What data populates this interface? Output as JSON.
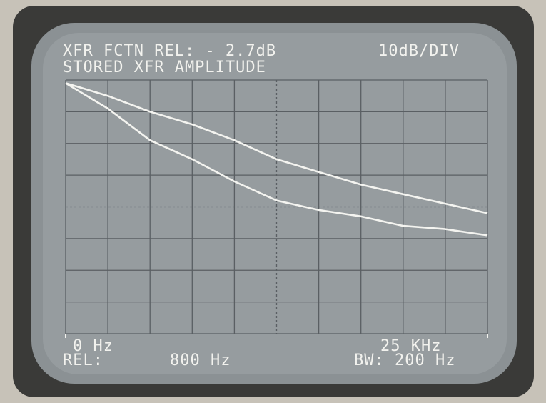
{
  "chart_data": {
    "type": "line",
    "title": "XFR FCTN REL: - 2.7dB",
    "subtitle": "STORED XFR AMPLITUDE",
    "annotations": [
      "10dB/DIV",
      "REL:",
      "800 Hz",
      "BW: 200 Hz"
    ],
    "x": [
      0,
      2500,
      5000,
      7500,
      10000,
      12500,
      15000,
      17500,
      20000,
      22500,
      25000
    ],
    "xlim": [
      0,
      25000
    ],
    "xticks": [
      {
        "value": 0,
        "label": "0 Hz"
      },
      {
        "value": 25000,
        "label": "25 KHz"
      }
    ],
    "ylim": [
      -80,
      0
    ],
    "series": [
      {
        "color": "#f4f4f0",
        "values": [
          -1,
          -5,
          -10,
          -14,
          -19,
          -25,
          -29,
          -33,
          -36,
          -39,
          -42
        ]
      },
      {
        "color": "#f4f4f0",
        "values": [
          -1,
          -9,
          -19,
          -25,
          -32,
          -38,
          -41,
          -43,
          -46,
          -47,
          -49
        ]
      }
    ]
  }
}
